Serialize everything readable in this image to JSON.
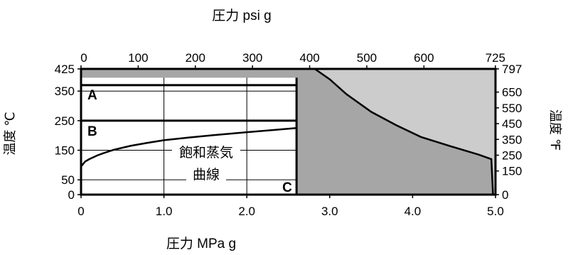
{
  "chart_data": {
    "type": "area",
    "title_top": "圧力 psi g",
    "xlabel": "圧力 MPa g",
    "ylabel_left": "温度 ℃",
    "ylabel_right": "温度 ℉",
    "xlim": [
      0,
      5.0
    ],
    "ylim": [
      0,
      425
    ],
    "x_ticks": [
      {
        "value": 0,
        "label": "0"
      },
      {
        "value": 1.0,
        "label": "1.0"
      },
      {
        "value": 2.0,
        "label": "2.0"
      },
      {
        "value": 3.0,
        "label": "3.0"
      },
      {
        "value": 4.0,
        "label": "4.0"
      },
      {
        "value": 5.0,
        "label": "5.0"
      }
    ],
    "x2_ticks": [
      {
        "value": 0,
        "label": "0"
      },
      {
        "value": 100,
        "label": "100"
      },
      {
        "value": 200,
        "label": "200"
      },
      {
        "value": 300,
        "label": "300"
      },
      {
        "value": 400,
        "label": "400"
      },
      {
        "value": 500,
        "label": "500"
      },
      {
        "value": 600,
        "label": "600"
      },
      {
        "value": 725,
        "label": "725"
      }
    ],
    "x2_per_x": 145.04,
    "y_ticks": [
      {
        "value": 0,
        "label": "0"
      },
      {
        "value": 50,
        "label": "50"
      },
      {
        "value": 150,
        "label": "150"
      },
      {
        "value": 250,
        "label": "250"
      },
      {
        "value": 350,
        "label": "350"
      },
      {
        "value": 425,
        "label": "425"
      }
    ],
    "y2_ticks": [
      {
        "value": 0,
        "label": "0"
      },
      {
        "value": 150,
        "label": "150"
      },
      {
        "value": 250,
        "label": "250"
      },
      {
        "value": 350,
        "label": "350"
      },
      {
        "value": 450,
        "label": "450"
      },
      {
        "value": 550,
        "label": "550"
      },
      {
        "value": 650,
        "label": "650"
      },
      {
        "value": 797,
        "label": "797"
      }
    ],
    "y2_max": 797,
    "regions": {
      "light_region": {
        "color": "#cccccc"
      },
      "dark_region": {
        "color": "#a6a6a6"
      },
      "limit_curve": [
        [
          2.82,
          425
        ],
        [
          3.0,
          390
        ],
        [
          3.2,
          340
        ],
        [
          3.5,
          280
        ],
        [
          3.8,
          235
        ],
        [
          4.1,
          195
        ],
        [
          4.5,
          160
        ],
        [
          4.8,
          135
        ],
        [
          4.95,
          120
        ],
        [
          4.97,
          0
        ]
      ],
      "dark_top": 400,
      "inner_right_x": 2.6
    },
    "saturation_curve": {
      "label_line1": "飽和蒸気",
      "label_line2": "曲線",
      "points": [
        [
          0,
          95
        ],
        [
          0.05,
          112
        ],
        [
          0.1,
          120
        ],
        [
          0.2,
          133
        ],
        [
          0.3,
          143
        ],
        [
          0.4,
          152
        ],
        [
          0.6,
          165
        ],
        [
          0.8,
          175
        ],
        [
          1.0,
          184
        ],
        [
          1.3,
          193
        ],
        [
          1.6,
          201
        ],
        [
          2.0,
          211
        ],
        [
          2.3,
          218
        ],
        [
          2.6,
          225
        ]
      ]
    },
    "zones": [
      {
        "label": "A",
        "y": 370
      },
      {
        "label": "B",
        "y": 250
      },
      {
        "label": "C",
        "y": 0
      }
    ],
    "grid": true,
    "grid_y": [
      50,
      150,
      250,
      350
    ],
    "grid_x": [
      1.0,
      2.0
    ]
  }
}
